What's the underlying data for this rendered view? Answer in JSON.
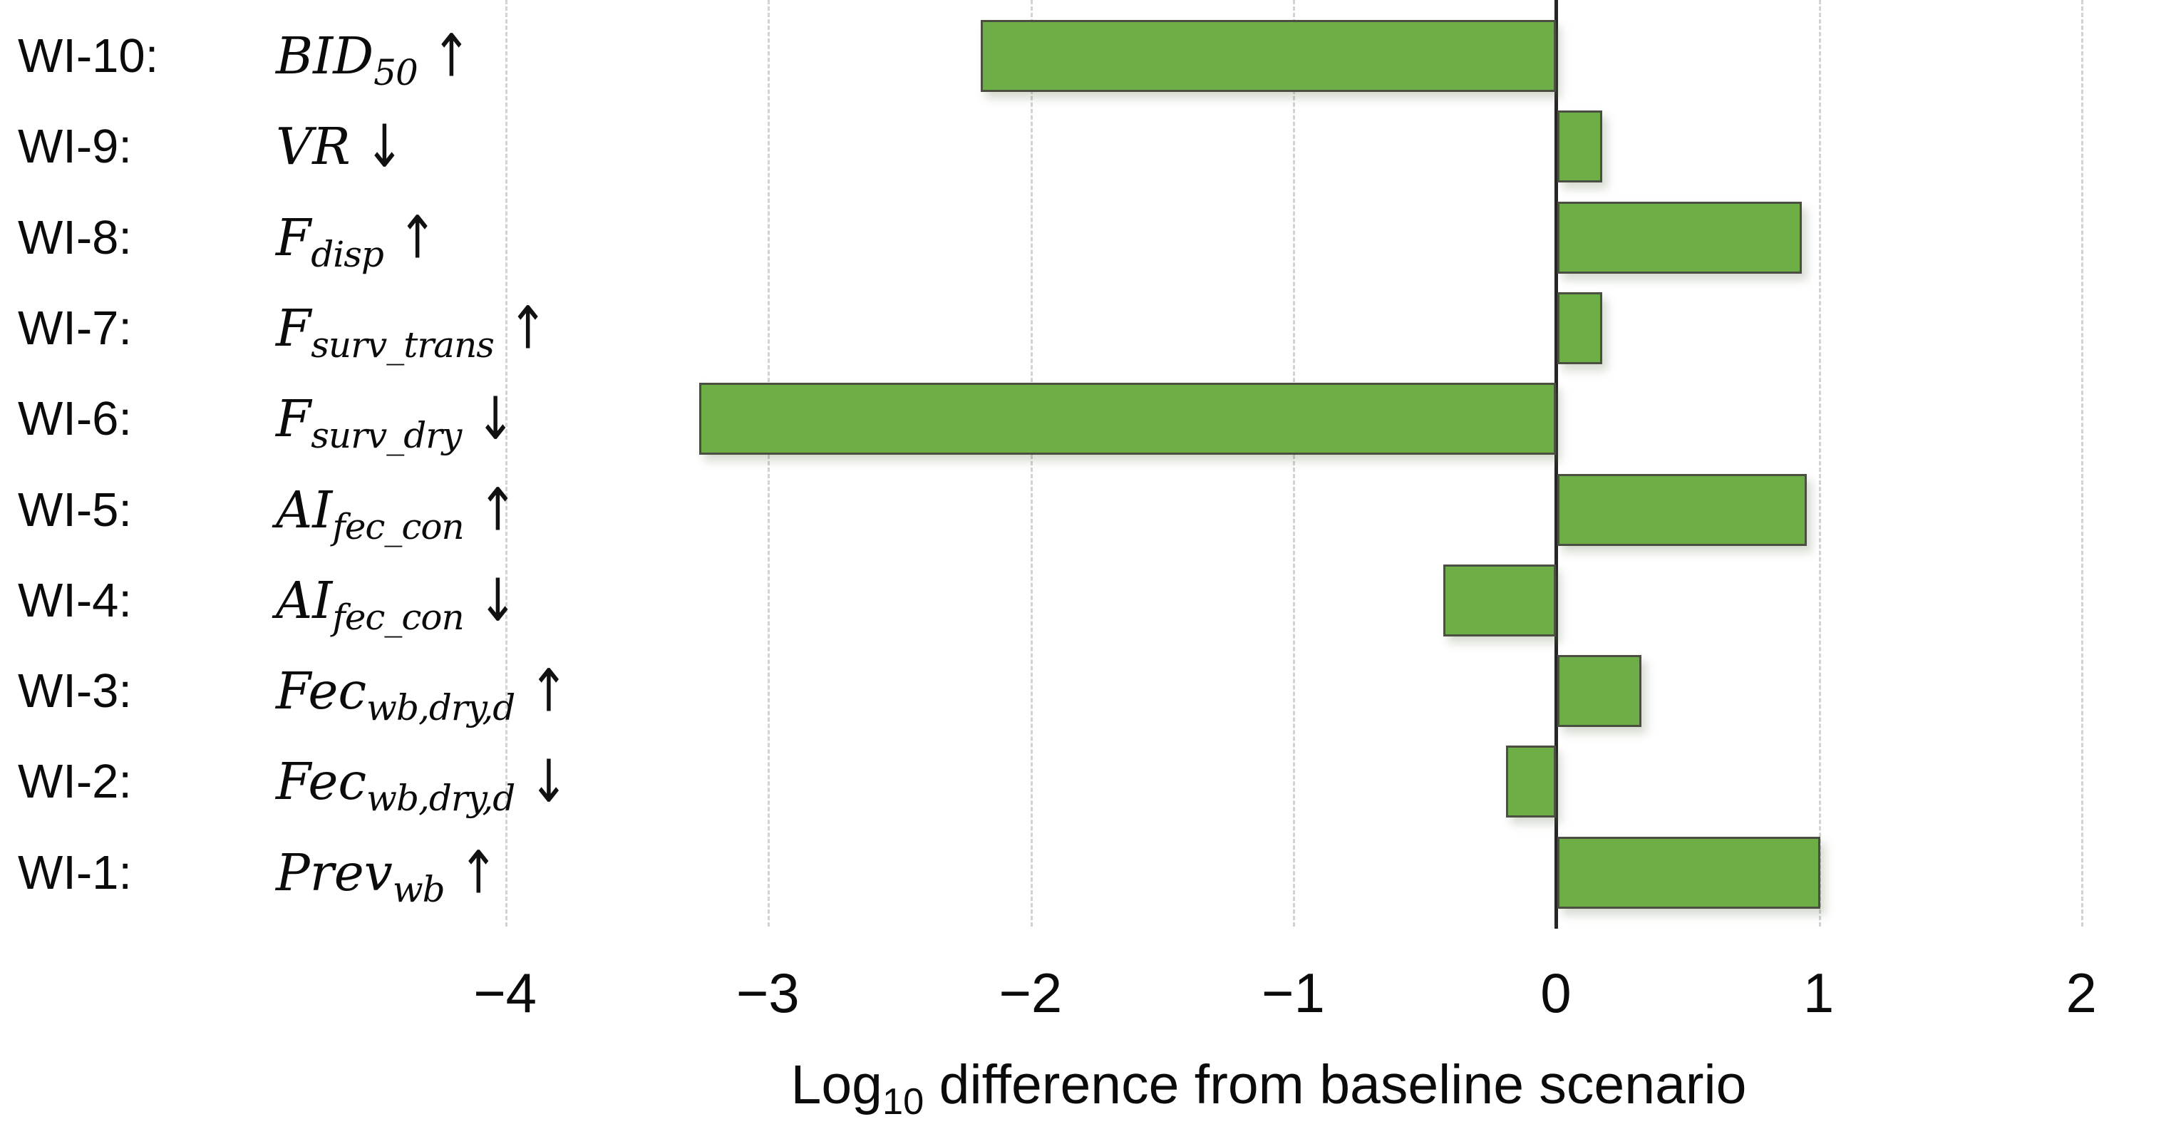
{
  "chart_data": {
    "type": "bar",
    "orientation": "horizontal",
    "title": "",
    "xlabel": {
      "pre": "Log",
      "sub": "10",
      "post": " difference from baseline scenario"
    },
    "xlim": [
      -4.3,
      2.3
    ],
    "x_ticks": [
      -4,
      -3,
      -2,
      -1,
      0,
      1,
      2
    ],
    "x_tick_labels": [
      "−4",
      "−3",
      "−2",
      "−1",
      "0",
      "1",
      "2"
    ],
    "grid": true,
    "legend": false,
    "bar_color": "#6DAE47",
    "bar_border_color": "#4a4f42",
    "axis_line_color": "#262626",
    "gridline_color": "#d2d2d2",
    "rows": [
      {
        "id": "WI-10",
        "label_prefix": "WI-10:",
        "param": "BID",
        "param_sub": "50",
        "arrow": "↑",
        "value": -2.19
      },
      {
        "id": "WI-9",
        "label_prefix": "WI-9:",
        "param": "VR",
        "param_sub": "",
        "arrow": "↓",
        "value": 0.17
      },
      {
        "id": "WI-8",
        "label_prefix": "WI-8:",
        "param": "F",
        "param_sub": "disp",
        "arrow": "↑",
        "value": 0.93
      },
      {
        "id": "WI-7",
        "label_prefix": "WI-7:",
        "param": "F",
        "param_sub": "surv_trans",
        "arrow": "↑",
        "value": 0.17
      },
      {
        "id": "WI-6",
        "label_prefix": "WI-6:",
        "param": "F",
        "param_sub": "surv_dry",
        "arrow": "↓",
        "value": -3.26
      },
      {
        "id": "WI-5",
        "label_prefix": "WI-5:",
        "param": "AI",
        "param_sub": "fec_con",
        "arrow": "↑",
        "value": 0.95
      },
      {
        "id": "WI-4",
        "label_prefix": "WI-4:",
        "param": "AI",
        "param_sub": "fec_con",
        "arrow": "↓",
        "value": -0.43
      },
      {
        "id": "WI-3",
        "label_prefix": "WI-3:",
        "param": "Fec",
        "param_sub": "wb,dry,d",
        "arrow": "↑",
        "value": 0.32
      },
      {
        "id": "WI-2",
        "label_prefix": "WI-2:",
        "param": "Fec",
        "param_sub": "wb,dry,d",
        "arrow": "↓",
        "value": -0.19
      },
      {
        "id": "WI-1",
        "label_prefix": "WI-1:",
        "param": "Prev",
        "param_sub": "wb",
        "arrow": "↑",
        "value": 1.0
      }
    ]
  }
}
